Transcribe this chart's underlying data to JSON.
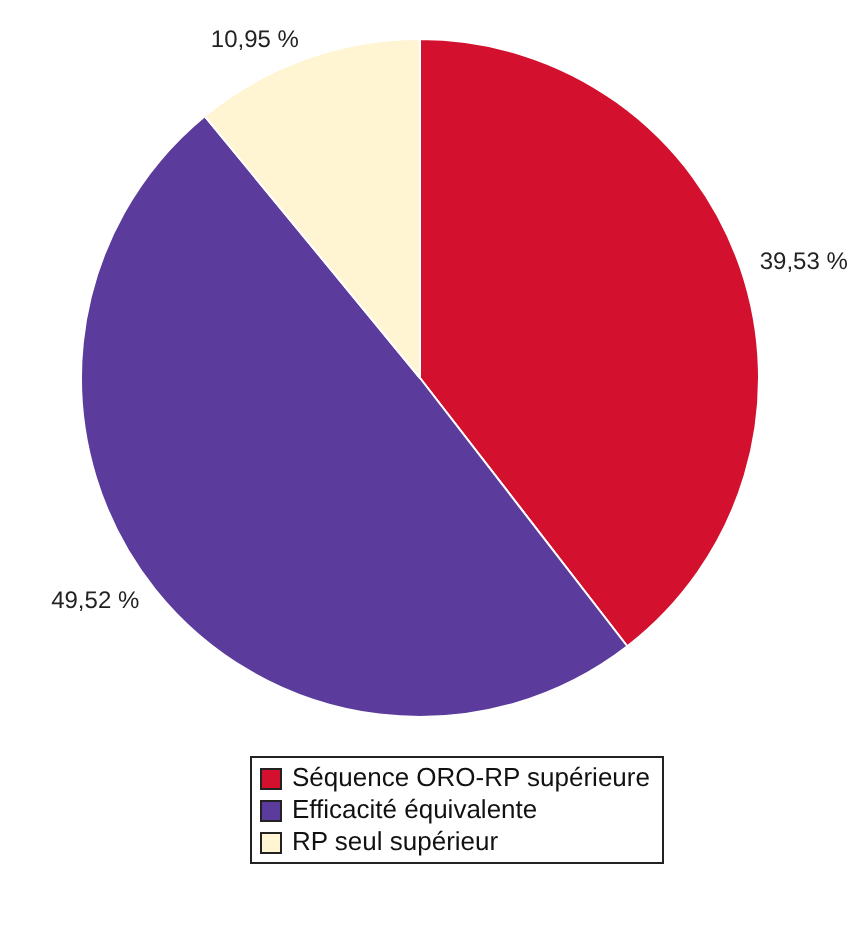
{
  "chart_data": {
    "type": "pie",
    "categories": [
      "Séquence ORO-RP supérieure",
      "Efficacité équivalente",
      "RP seul supérieur"
    ],
    "values": [
      39.53,
      49.52,
      10.95
    ],
    "colors": [
      "#d3102e",
      "#5b3c9c",
      "#fff5d2"
    ],
    "value_labels": [
      "39,53 %",
      "49,52 %",
      "10,95 %"
    ],
    "legend": "bottom"
  }
}
